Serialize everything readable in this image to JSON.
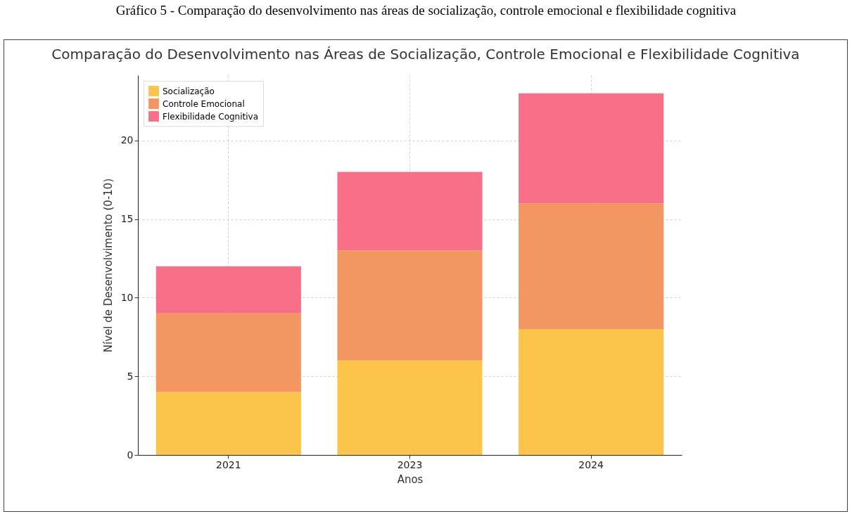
{
  "chart_data": {
    "type": "bar",
    "title": "Gráfico 5 - Comparação do desenvolvimento nas áreas de socialização, controle emocional e flexibilidade cognitiva",
    "subtitle": "Comparação do Desenvolvimento nas Áreas de Socialização, Controle Emocional e Flexibilidade Cognitiva",
    "xlabel": "Anos",
    "ylabel": "Nível de Desenvolvimento (0-10)",
    "categories": [
      "2021",
      "2023",
      "2024"
    ],
    "stacked": true,
    "series": [
      {
        "name": "Socialização",
        "color": "#fdc44c",
        "values": [
          4,
          6,
          8
        ]
      },
      {
        "name": "Controle Emocional",
        "color": "#f49662",
        "values": [
          5,
          7,
          8
        ]
      },
      {
        "name": "Flexibilidade Cognitiva",
        "color": "#f77088",
        "values": [
          3,
          5,
          7
        ]
      }
    ],
    "ylim": [
      0,
      24.15
    ],
    "yticks": [
      0,
      5,
      10,
      15,
      20
    ],
    "grid": true,
    "legend": "top left"
  }
}
